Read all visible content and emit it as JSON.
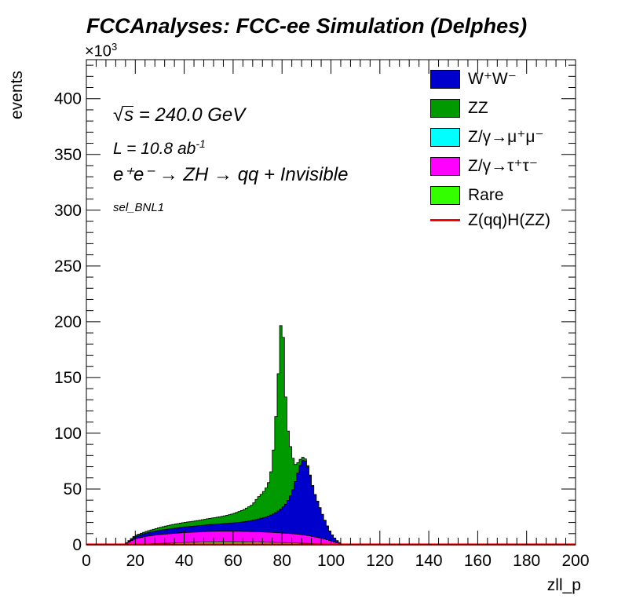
{
  "title": "FCCAnalyses: FCC-ee Simulation (Delphes)",
  "exponent": {
    "base": "×10",
    "power": "3"
  },
  "annotations": {
    "sqrt_prefix": "√",
    "sqrt_s": "s",
    "energy": " = 240.0 GeV",
    "lumi_prefix": "L = 10.8 ab",
    "lumi_power": "-1",
    "process": "e⁺e⁻ → ZH → qq + Invisible",
    "selection": "sel_BNL1"
  },
  "legend": [
    {
      "label": "W⁺W⁻",
      "color": "#0000cc",
      "kind": "box"
    },
    {
      "label": "ZZ",
      "color": "#009900",
      "kind": "box"
    },
    {
      "label": "Z/γ→μ⁺μ⁻",
      "color": "#00ffff",
      "kind": "box"
    },
    {
      "label": "Z/γ→τ⁺τ⁻",
      "color": "#ff00ff",
      "kind": "box"
    },
    {
      "label": "Rare",
      "color": "#33ff00",
      "kind": "box"
    },
    {
      "label": "Z(qq)H(ZZ)",
      "color": "#ff0000",
      "kind": "line"
    }
  ],
  "chart_data": {
    "type": "area",
    "stacked": true,
    "title": "FCCAnalyses: FCC-ee Simulation (Delphes)",
    "xlabel": "zll_p",
    "ylabel": "events",
    "y_scale_note": "×10^3",
    "xlim": [
      0,
      200
    ],
    "ylim": [
      0,
      435
    ],
    "x_ticks": [
      0,
      20,
      40,
      60,
      80,
      100,
      120,
      140,
      160,
      180,
      200
    ],
    "y_ticks": [
      0,
      50,
      100,
      150,
      200,
      250,
      300,
      350,
      400
    ],
    "bin_width": 1,
    "points_x": [
      0,
      15,
      16,
      18,
      20,
      25,
      30,
      35,
      40,
      45,
      50,
      55,
      60,
      62,
      64,
      66,
      68,
      70,
      72,
      74,
      75,
      76,
      77,
      78,
      79,
      80,
      81,
      82,
      83,
      84,
      85,
      86,
      87,
      88,
      89,
      90,
      91,
      92,
      93,
      94,
      95,
      96,
      97,
      98,
      99,
      100,
      101,
      102,
      103,
      104,
      105,
      106,
      200
    ],
    "series": [
      {
        "name": "Rare",
        "color": "#33ff00",
        "values": [
          0,
          0,
          0,
          0.2,
          0.4,
          0.8,
          1.2,
          1.5,
          2,
          2.2,
          2.5,
          2.6,
          2.6,
          2.6,
          2.5,
          2.5,
          2.4,
          2.4,
          2.3,
          2.2,
          2.2,
          2.1,
          2.1,
          2,
          2,
          2,
          1.9,
          1.9,
          1.8,
          1.8,
          1.7,
          1.6,
          1.6,
          1.5,
          1.4,
          1.3,
          1.2,
          1.1,
          1,
          0.9,
          0.8,
          0.7,
          0.6,
          0.5,
          0.4,
          0.3,
          0.2,
          0.1,
          0.05,
          0,
          0,
          0,
          0
        ]
      },
      {
        "name": "Z/γ→τ⁺τ⁻",
        "color": "#ff00ff",
        "values": [
          0,
          0,
          0.5,
          3,
          5,
          7,
          8,
          8.5,
          9,
          9.2,
          9.5,
          9.6,
          9.6,
          9.6,
          9.5,
          9.5,
          9.4,
          9.3,
          9.2,
          9.1,
          9,
          9,
          8.9,
          8.8,
          8.7,
          8.6,
          8.5,
          8.4,
          8.3,
          8.2,
          8.1,
          8,
          7.8,
          7.6,
          7.4,
          7.2,
          6.9,
          6.6,
          6.3,
          6,
          5.6,
          5.2,
          4.8,
          4.3,
          3.8,
          3.2,
          2.6,
          2,
          1.4,
          0.8,
          0.3,
          0,
          0
        ]
      },
      {
        "name": "Z/γ→μ⁺μ⁻",
        "color": "#00ffff",
        "values": [
          0,
          0,
          0,
          0,
          0,
          0,
          0,
          0,
          0,
          0,
          0,
          0,
          0,
          0,
          0,
          0,
          0,
          0,
          0,
          0,
          0,
          0,
          0,
          0,
          0,
          0,
          0,
          0,
          0,
          0,
          0,
          0,
          0,
          0,
          0,
          0,
          0,
          0,
          0,
          0,
          0,
          0,
          0,
          0,
          0,
          0,
          0,
          0,
          0,
          0,
          0,
          0,
          0
        ]
      },
      {
        "name": "W⁺W⁻",
        "color": "#0000cc",
        "values": [
          0,
          0,
          0.5,
          1,
          2,
          3,
          3.8,
          4.5,
          5,
          5.5,
          6,
          6.6,
          7.4,
          7.8,
          8.5,
          9.1,
          10.1,
          11.1,
          12.5,
          14,
          15,
          16,
          17.2,
          18.7,
          20.3,
          22.4,
          24.6,
          27.6,
          31.6,
          36,
          43,
          51,
          59,
          65,
          68,
          65,
          58,
          50,
          41,
          35,
          30,
          24.2,
          19.1,
          14.6,
          10.2,
          6.9,
          4.6,
          2.6,
          1.2,
          0.4,
          0,
          0,
          0
        ]
      },
      {
        "name": "ZZ",
        "color": "#009900",
        "values": [
          0,
          0,
          0,
          0.5,
          1,
          1.5,
          2.5,
          3.5,
          4,
          4.6,
          5.5,
          6.4,
          8.2,
          9.4,
          10.6,
          12.4,
          14.2,
          19.4,
          22.2,
          27.2,
          32.8,
          44.8,
          69.8,
          102.4,
          144,
          185,
          119,
          73.1,
          51.2,
          37.2,
          19.2,
          11.4,
          6.8,
          3.9,
          2.2,
          1.5,
          0.9,
          0.3,
          0,
          0,
          0,
          0,
          0,
          0,
          0,
          0,
          0,
          0,
          0,
          0,
          0,
          0,
          0
        ]
      }
    ],
    "overlay": {
      "name": "Z(qq)H(ZZ)",
      "color": "#ff0000",
      "values_note": "near zero across range",
      "value": 0.3
    }
  }
}
